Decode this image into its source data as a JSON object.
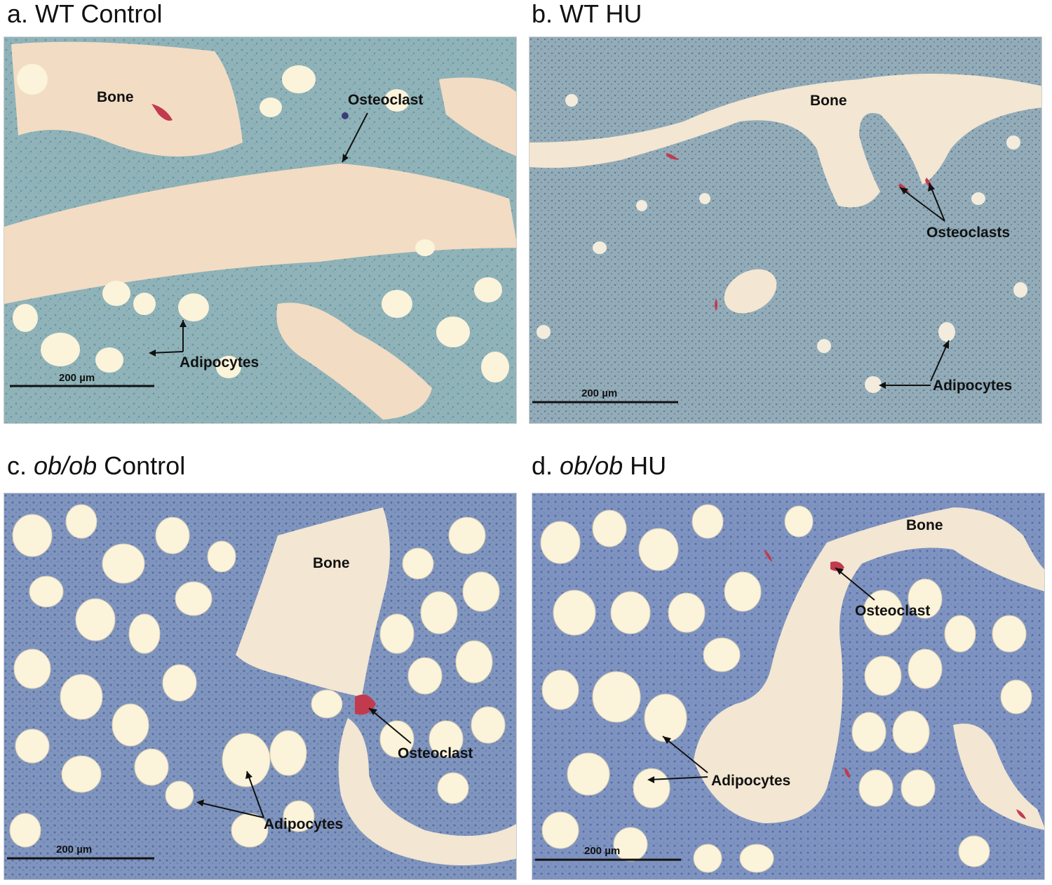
{
  "panels": [
    {
      "letter": "a.",
      "genotype": "WT",
      "genotype_italic": false,
      "condition": "Control",
      "labels": {
        "bone": "Bone",
        "osteoclast": "Osteoclast",
        "adipocytes": "Adipocytes"
      },
      "scale_bar": "200 µm"
    },
    {
      "letter": "b.",
      "genotype": "WT",
      "genotype_italic": false,
      "condition": "HU",
      "labels": {
        "bone": "Bone",
        "osteoclast": "Osteoclasts",
        "adipocytes": "Adipocytes"
      },
      "scale_bar": "200 µm"
    },
    {
      "letter": "c.",
      "genotype": "ob/ob",
      "genotype_italic": true,
      "condition": "Control",
      "labels": {
        "bone": "Bone",
        "osteoclast": "Osteoclast",
        "adipocytes": "Adipocytes"
      },
      "scale_bar": "200 µm"
    },
    {
      "letter": "d.",
      "genotype": "ob/ob",
      "genotype_italic": true,
      "condition": "HU",
      "labels": {
        "bone": "Bone",
        "osteoclast": "Osteoclast",
        "adipocytes": "Adipocytes"
      },
      "scale_bar": "200 µm"
    }
  ],
  "colors": {
    "marrow_light": "#8fb3b8",
    "marrow_dense": "#6f86ad",
    "bone_fill": "#f3dcc4",
    "adipocyte_fill": "#fbf3da",
    "osteoclast_stain": "#c23a4e",
    "annotation_ink": "#111111"
  }
}
